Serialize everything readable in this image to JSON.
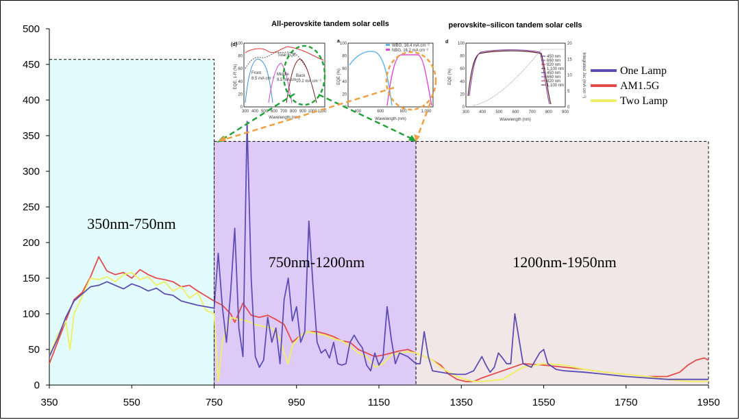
{
  "chart_data": {
    "type": "line",
    "title": "",
    "xlabel": "",
    "ylabel": "",
    "xlim": [
      350,
      1950
    ],
    "ylim": [
      0,
      500
    ],
    "x_ticks": [
      350,
      550,
      750,
      950,
      1150,
      1350,
      1550,
      1750,
      1950
    ],
    "y_ticks": [
      0,
      50,
      100,
      150,
      200,
      250,
      300,
      350,
      400,
      450,
      500
    ],
    "legend_position": "top-right",
    "regions": [
      {
        "label": "350nm-750nm",
        "x0": 350,
        "x1": 750,
        "y_top": 457,
        "color": "#e2fbfd"
      },
      {
        "label": "750nm-1200nm",
        "x0": 750,
        "x1": 1240,
        "y_top": 342,
        "color": "#decaf6"
      },
      {
        "label": "1200nm-1950nm",
        "x0": 1240,
        "x1": 1950,
        "y_top": 342,
        "color": "#f1e7e6"
      }
    ],
    "series": [
      {
        "name": "One Lamp",
        "color": "#5b4db3",
        "x": [
          350,
          370,
          390,
          410,
          430,
          450,
          470,
          490,
          510,
          530,
          550,
          570,
          590,
          610,
          630,
          650,
          670,
          690,
          710,
          730,
          750,
          760,
          770,
          780,
          790,
          800,
          810,
          820,
          830,
          840,
          850,
          860,
          870,
          880,
          890,
          900,
          910,
          920,
          930,
          940,
          950,
          960,
          970,
          980,
          990,
          1000,
          1010,
          1020,
          1030,
          1040,
          1050,
          1060,
          1070,
          1080,
          1090,
          1100,
          1110,
          1120,
          1130,
          1140,
          1150,
          1160,
          1170,
          1180,
          1190,
          1200,
          1220,
          1240,
          1250,
          1260,
          1270,
          1280,
          1300,
          1320,
          1340,
          1350,
          1360,
          1380,
          1400,
          1410,
          1420,
          1430,
          1440,
          1450,
          1460,
          1470,
          1480,
          1500,
          1520,
          1540,
          1550,
          1560,
          1580,
          1600,
          1650,
          1700,
          1750,
          1800,
          1850,
          1900,
          1950
        ],
        "y": [
          40,
          65,
          95,
          118,
          128,
          138,
          140,
          145,
          140,
          135,
          142,
          138,
          132,
          136,
          128,
          126,
          118,
          115,
          112,
          110,
          108,
          185,
          110,
          60,
          130,
          220,
          80,
          40,
          370,
          150,
          40,
          25,
          35,
          95,
          60,
          80,
          30,
          120,
          150,
          90,
          110,
          60,
          75,
          230,
          140,
          60,
          45,
          50,
          38,
          60,
          30,
          28,
          30,
          60,
          70,
          60,
          52,
          28,
          20,
          45,
          28,
          38,
          110,
          65,
          30,
          45,
          40,
          30,
          30,
          75,
          40,
          20,
          18,
          16,
          15,
          15,
          15,
          20,
          40,
          28,
          18,
          25,
          45,
          38,
          30,
          30,
          100,
          30,
          25,
          45,
          50,
          30,
          22,
          20,
          18,
          15,
          12,
          10,
          8,
          8,
          8
        ]
      },
      {
        "name": "AM1.5G",
        "color": "#e64a4a",
        "x": [
          350,
          370,
          390,
          410,
          430,
          450,
          470,
          490,
          510,
          530,
          550,
          570,
          590,
          610,
          630,
          650,
          670,
          690,
          710,
          730,
          750,
          770,
          790,
          800,
          820,
          840,
          860,
          880,
          900,
          920,
          940,
          960,
          980,
          1000,
          1020,
          1040,
          1060,
          1080,
          1100,
          1120,
          1140,
          1160,
          1180,
          1200,
          1220,
          1240,
          1260,
          1280,
          1300,
          1320,
          1340,
          1360,
          1380,
          1400,
          1450,
          1500,
          1550,
          1600,
          1650,
          1700,
          1750,
          1800,
          1850,
          1880,
          1900,
          1920,
          1940,
          1950
        ],
        "y": [
          30,
          60,
          90,
          120,
          130,
          152,
          180,
          160,
          155,
          158,
          150,
          162,
          155,
          150,
          148,
          145,
          138,
          140,
          132,
          125,
          118,
          112,
          100,
          88,
          115,
          98,
          95,
          98,
          92,
          85,
          60,
          70,
          75,
          75,
          72,
          68,
          62,
          60,
          50,
          45,
          40,
          42,
          45,
          48,
          50,
          45,
          40,
          35,
          28,
          15,
          8,
          5,
          5,
          10,
          20,
          30,
          28,
          25,
          22,
          18,
          15,
          12,
          12,
          18,
          28,
          35,
          38,
          35
        ]
      },
      {
        "name": "Two Lamp",
        "color": "#f0ef6a",
        "x": [
          350,
          370,
          390,
          400,
          410,
          430,
          450,
          470,
          490,
          510,
          530,
          550,
          570,
          590,
          610,
          630,
          650,
          670,
          690,
          710,
          730,
          750,
          760,
          770,
          790,
          810,
          830,
          850,
          870,
          890,
          910,
          920,
          930,
          940,
          960,
          980,
          1000,
          1020,
          1040,
          1060,
          1080,
          1100,
          1120,
          1140,
          1160,
          1180,
          1200,
          1220,
          1240,
          1260,
          1280,
          1300,
          1320,
          1340,
          1360,
          1380,
          1400,
          1450,
          1500,
          1550,
          1600,
          1650,
          1700,
          1750,
          1800,
          1850,
          1900,
          1950
        ],
        "y": [
          40,
          70,
          90,
          50,
          100,
          125,
          150,
          148,
          152,
          145,
          155,
          158,
          148,
          152,
          140,
          145,
          132,
          138,
          122,
          130,
          105,
          100,
          5,
          60,
          95,
          92,
          90,
          85,
          82,
          80,
          65,
          45,
          30,
          55,
          70,
          75,
          72,
          70,
          65,
          62,
          55,
          45,
          40,
          25,
          30,
          42,
          45,
          47,
          45,
          40,
          35,
          25,
          18,
          12,
          8,
          5,
          5,
          8,
          25,
          30,
          28,
          22,
          18,
          15,
          12,
          8,
          5,
          5
        ]
      }
    ]
  },
  "insets": {
    "left_title": "All-perovskite tandem solar cells",
    "right_title": "perovskite–silicon tandem solar cells",
    "panel_d1": {
      "tag": "(d)",
      "ylabel": "EQE, 1-R (%)",
      "xlabel": "Wavelength (nm)",
      "yticks": [
        "0",
        "20",
        "40",
        "60",
        "80",
        "100"
      ],
      "xticks": [
        "300",
        "400",
        "500",
        "600",
        "700",
        "800",
        "900",
        "1000",
        "1100"
      ],
      "labels": {
        "total": "Total EQE",
        "front": "Front",
        "front_val": "8.5 mA cm⁻²",
        "middle": "Middle",
        "middle_val": "9.5 mA cm⁻²",
        "back": "Back",
        "back_val": "10.2 mA cm⁻²"
      }
    },
    "panel_a": {
      "tag": "a",
      "ylabel": "EQE (%)",
      "xlabel": "Wavelength (nm)",
      "yticks": [
        "0",
        "20",
        "40",
        "60",
        "80",
        "100"
      ],
      "xticks": [
        "400",
        "600",
        "800",
        "1,000"
      ],
      "legend": [
        "WBG, 16.4 mA cm⁻²",
        "NBG, 16.2 mA cm⁻²"
      ]
    },
    "panel_d2": {
      "tag": "d",
      "ylabel": "EQE (%)",
      "y2label": "Integrated Jsc (mA cm⁻²)",
      "xlabel": "Wavelength (nm)",
      "yticks": [
        "0",
        "20",
        "40",
        "60",
        "80",
        "100"
      ],
      "y2ticks": [
        "0",
        "5",
        "10",
        "15",
        "20"
      ],
      "xticks": [
        "300",
        "400",
        "500",
        "600",
        "700",
        "800",
        "900"
      ],
      "legend": [
        "450 nm",
        "660 nm",
        "820 nm",
        "1,100 nm",
        "450 nm",
        "660 nm",
        "820 nm",
        "1,100 nm"
      ]
    }
  }
}
